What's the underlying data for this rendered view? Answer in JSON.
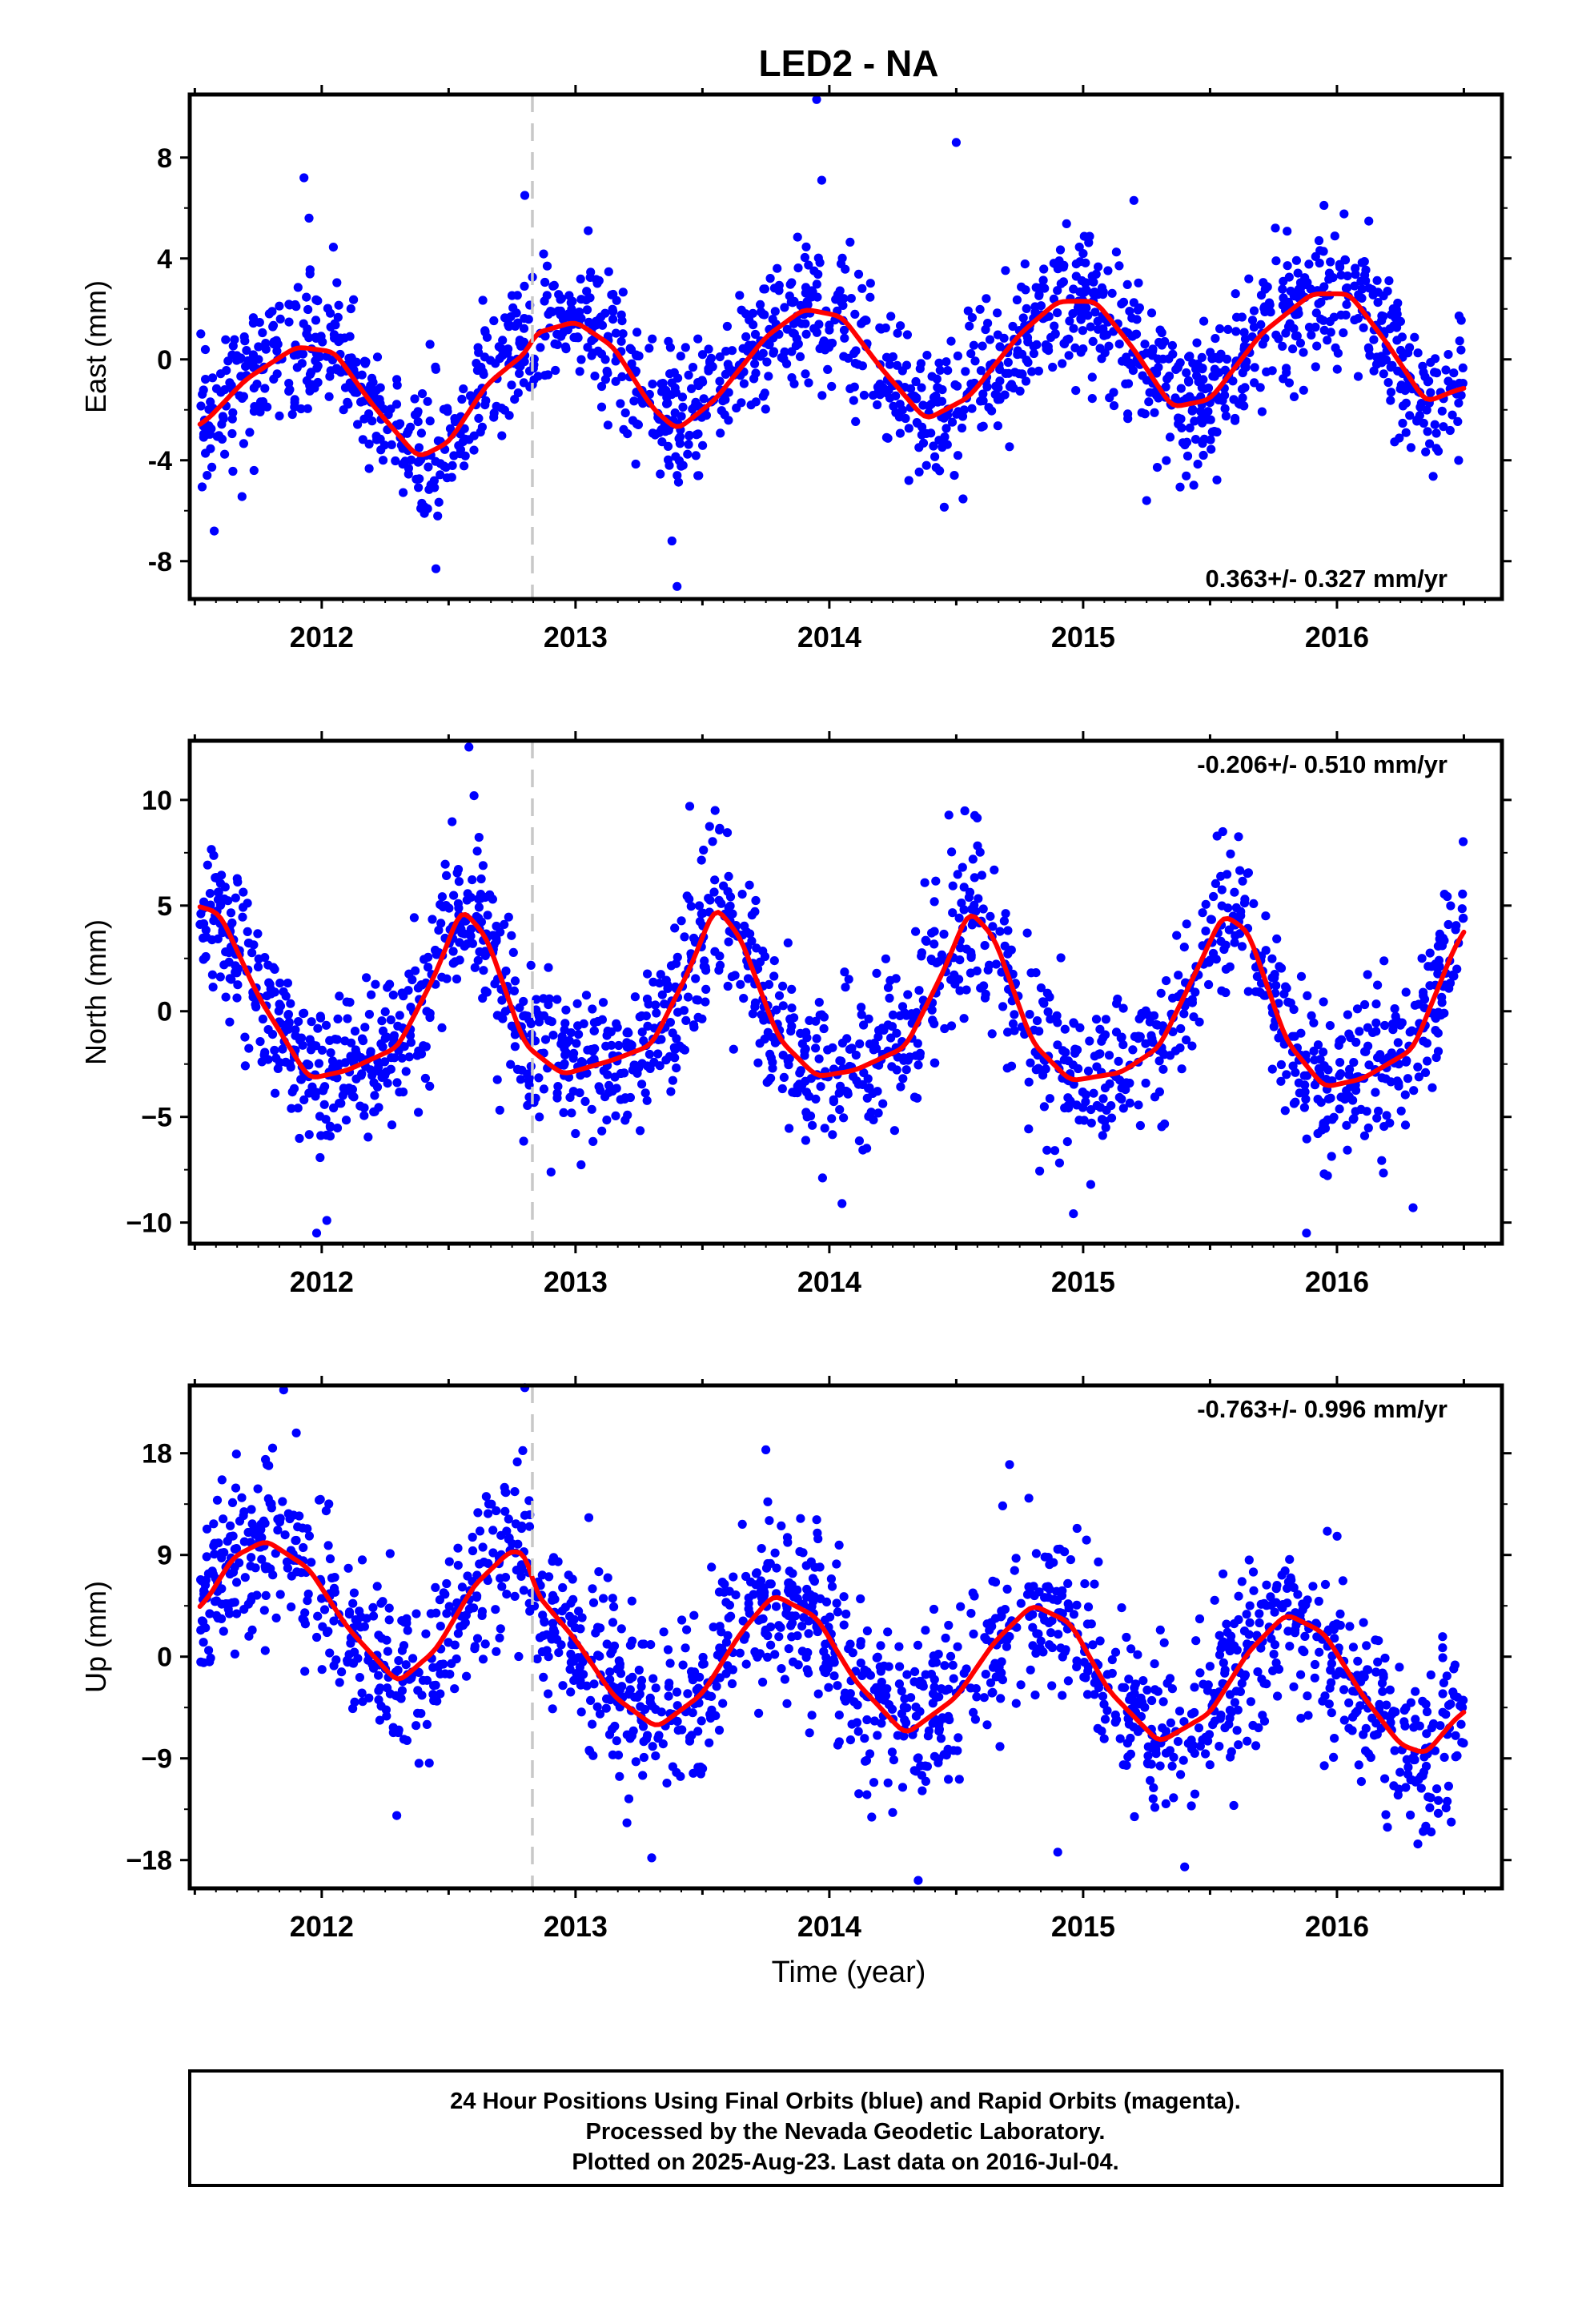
{
  "title": "LED2 - NA",
  "footer": {
    "lines": [
      "24 Hour Positions Using Final Orbits (blue) and Rapid Orbits (magenta).",
      "Processed by the Nevada Geodetic Laboratory.",
      "Plotted on 2025-Aug-23. Last data on 2016-Jul-04."
    ]
  },
  "colors": {
    "points": "#0000ff",
    "fit": "#ff0000",
    "marker_line": "#c8c8c8",
    "frame": "#000000"
  },
  "chart_data": [
    {
      "type": "scatter",
      "name": "east",
      "ylabel": "East (mm)",
      "xlabel": "",
      "xlim": [
        2011.48,
        2016.65
      ],
      "ylim": [
        -9.5,
        10.5
      ],
      "yticks": [
        "8",
        "4",
        "0",
        "-4",
        "-8"
      ],
      "ytick_values": [
        8,
        4,
        0,
        -4,
        -8
      ],
      "xticks": [
        "2012",
        "2013",
        "2014",
        "2015",
        "2016"
      ],
      "xtick_values": [
        2012,
        2013,
        2014,
        2015,
        2016
      ],
      "rate_label": "0.363+/- 0.327 mm/yr",
      "rate_position": "bottom-right",
      "event_line_x": 2012.83,
      "fit": {
        "x": [
          2011.52,
          2011.7,
          2011.9,
          2012.05,
          2012.2,
          2012.38,
          2012.5,
          2012.65,
          2012.82,
          2012.83,
          2013.0,
          2013.15,
          2013.3,
          2013.4,
          2013.55,
          2013.75,
          2013.9,
          2014.05,
          2014.2,
          2014.38,
          2014.55,
          2014.75,
          2014.9,
          2015.05,
          2015.2,
          2015.35,
          2015.5,
          2015.7,
          2015.9,
          2016.05,
          2016.2,
          2016.35,
          2016.5
        ],
        "y": [
          -2.7,
          -0.8,
          0.5,
          0.3,
          -1.8,
          -3.9,
          -3.3,
          -1.0,
          0.4,
          1.0,
          1.5,
          0.5,
          -1.9,
          -2.8,
          -1.6,
          0.9,
          2.0,
          1.7,
          -0.3,
          -2.4,
          -1.5,
          1.0,
          2.3,
          2.3,
          0.4,
          -1.9,
          -1.6,
          1.0,
          2.6,
          2.6,
          0.6,
          -1.7,
          -1.1
        ]
      },
      "scatter": {
        "n": 1650,
        "noise": 1.35,
        "outliers": [
          [
            2011.93,
            7.2
          ],
          [
            2011.95,
            5.6
          ],
          [
            2012.8,
            6.5
          ],
          [
            2013.05,
            5.1
          ],
          [
            2013.95,
            10.3
          ],
          [
            2013.97,
            7.1
          ],
          [
            2014.5,
            8.6
          ],
          [
            2015.2,
            6.3
          ],
          [
            2013.4,
            -9.0
          ],
          [
            2013.38,
            -7.2
          ],
          [
            2012.45,
            -8.3
          ],
          [
            2015.25,
            -5.6
          ]
        ]
      }
    },
    {
      "type": "scatter",
      "name": "north",
      "ylabel": "North (mm)",
      "xlabel": "",
      "xlim": [
        2011.48,
        2016.65
      ],
      "ylim": [
        -11,
        12.8
      ],
      "yticks": [
        "10",
        "5",
        "0",
        "−5",
        "−10"
      ],
      "ytick_values": [
        10,
        5,
        0,
        -5,
        -10
      ],
      "xticks": [
        "2012",
        "2013",
        "2014",
        "2015",
        "2016"
      ],
      "xtick_values": [
        2012,
        2013,
        2014,
        2015,
        2016
      ],
      "rate_label": "-0.206+/- 0.510 mm/yr",
      "rate_position": "top-right",
      "event_line_x": 2012.83,
      "fit": {
        "x": [
          2011.52,
          2011.6,
          2011.75,
          2011.95,
          2012.1,
          2012.3,
          2012.45,
          2012.55,
          2012.65,
          2012.8,
          2012.95,
          2013.15,
          2013.3,
          2013.45,
          2013.55,
          2013.65,
          2013.8,
          2013.95,
          2014.1,
          2014.3,
          2014.45,
          2014.55,
          2014.65,
          2014.8,
          2014.95,
          2015.15,
          2015.3,
          2015.45,
          2015.55,
          2015.65,
          2015.8,
          2015.95,
          2016.1,
          2016.3,
          2016.5
        ],
        "y": [
          5.0,
          4.6,
          0.7,
          -3.2,
          -2.8,
          -1.7,
          1.8,
          4.9,
          3.5,
          -1.6,
          -3.0,
          -2.3,
          -1.6,
          2.0,
          5.0,
          3.5,
          -1.3,
          -3.1,
          -2.8,
          -1.7,
          1.9,
          4.8,
          3.5,
          -1.5,
          -3.3,
          -2.9,
          -1.7,
          2.0,
          4.6,
          3.8,
          -1.4,
          -3.6,
          -3.2,
          -1.8,
          4.1
        ]
      },
      "scatter": {
        "n": 1650,
        "noise": 1.9,
        "outliers": [
          [
            2012.58,
            12.5
          ],
          [
            2012.6,
            10.2
          ],
          [
            2013.45,
            9.7
          ],
          [
            2013.55,
            9.5
          ],
          [
            2015.55,
            8.5
          ],
          [
            2011.98,
            -10.5
          ],
          [
            2012.02,
            -9.9
          ],
          [
            2015.88,
            -10.5
          ],
          [
            2014.05,
            -9.1
          ],
          [
            2016.3,
            -9.3
          ],
          [
            2015.03,
            -8.2
          ]
        ]
      }
    },
    {
      "type": "scatter",
      "name": "up",
      "ylabel": "Up (mm)",
      "xlabel": "Time (year)",
      "xlim": [
        2011.48,
        2016.65
      ],
      "ylim": [
        -20.5,
        24
      ],
      "yticks": [
        "18",
        "9",
        "0",
        "−9",
        "−18"
      ],
      "ytick_values": [
        18,
        9,
        0,
        -9,
        -18
      ],
      "xticks": [
        "2012",
        "2013",
        "2014",
        "2015",
        "2016"
      ],
      "xtick_values": [
        2012,
        2013,
        2014,
        2015,
        2016
      ],
      "rate_label": "-0.763+/- 0.996 mm/yr",
      "rate_position": "top-right",
      "event_line_x": 2012.83,
      "fit": {
        "x": [
          2011.52,
          2011.65,
          2011.78,
          2011.95,
          2012.1,
          2012.3,
          2012.45,
          2012.6,
          2012.75,
          2012.82,
          2012.83,
          2013.0,
          2013.15,
          2013.32,
          2013.5,
          2013.65,
          2013.78,
          2013.95,
          2014.1,
          2014.3,
          2014.5,
          2014.65,
          2014.8,
          2014.95,
          2015.1,
          2015.3,
          2015.5,
          2015.65,
          2015.8,
          2015.95,
          2016.1,
          2016.25,
          2016.35,
          2016.5
        ],
        "y": [
          4.0,
          8.8,
          10.3,
          7.8,
          2.6,
          -2.3,
          0.6,
          6.3,
          9.5,
          8.8,
          6.0,
          1.5,
          -3.5,
          -6.3,
          -3.3,
          2.1,
          5.5,
          3.5,
          -2.1,
          -6.9,
          -3.6,
          1.3,
          4.6,
          3.0,
          -3.0,
          -7.6,
          -5.0,
          0.4,
          3.8,
          2.1,
          -3.4,
          -7.8,
          -8.6,
          -4.6
        ]
      },
      "scatter": {
        "n": 1650,
        "noise": 3.8,
        "outliers": [
          [
            2011.85,
            23.6
          ],
          [
            2011.9,
            19.8
          ],
          [
            2012.8,
            23.8
          ],
          [
            2013.75,
            18.3
          ],
          [
            2013.3,
            -17.8
          ],
          [
            2014.35,
            -19.8
          ],
          [
            2015.4,
            -18.6
          ],
          [
            2014.9,
            -17.3
          ],
          [
            2016.35,
            -15.0
          ]
        ]
      }
    }
  ]
}
